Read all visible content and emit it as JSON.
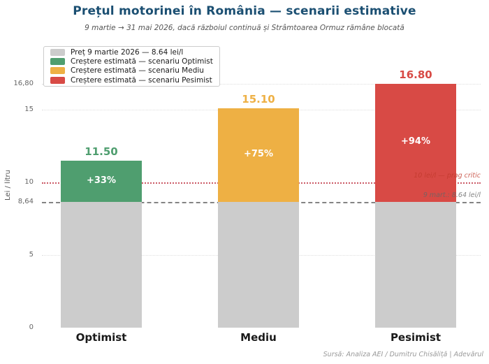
{
  "chart_data": {
    "type": "bar",
    "stacked": true,
    "title": "Prețul motorinei în România — scenarii estimative",
    "subtitle": "9 martie → 31 mai 2026, dacă războiul continuă și Strâmtoarea Ormuz rămâne blocată",
    "ylabel": "Lei / litru",
    "ylim": [
      0,
      18.2
    ],
    "grid": "horizontal-dotted",
    "legend_position": "upper-left",
    "categories": [
      "Optimist",
      "Mediu",
      "Pesimist"
    ],
    "base": {
      "label": "Preț 9 martie 2026 — 8.64 lei/l",
      "value": 8.64,
      "color": "#cccccc"
    },
    "bars": [
      {
        "category": "Optimist",
        "total_value": 11.5,
        "total_label": "11.50",
        "increase_label": "+33%",
        "color": "#4f9e6f"
      },
      {
        "category": "Mediu",
        "total_value": 15.1,
        "total_label": "15.10",
        "increase_label": "+75%",
        "color": "#eeb044"
      },
      {
        "category": "Pesimist",
        "total_value": 16.8,
        "total_label": "16.80",
        "increase_label": "+94%",
        "color": "#d84a45"
      }
    ],
    "yticks": [
      {
        "value": 0,
        "label": "0"
      },
      {
        "value": 5,
        "label": "5"
      },
      {
        "value": 8.64,
        "label": "8,64"
      },
      {
        "value": 10,
        "label": "10"
      },
      {
        "value": 15,
        "label": "15"
      },
      {
        "value": 16.8,
        "label": "16,80"
      }
    ],
    "gridline_values": [
      5,
      15,
      16.8
    ],
    "reference_lines": [
      {
        "value": 10,
        "label": "10 lei/l — prag critic",
        "style": "dotted",
        "line_color": "#cb5a66",
        "text_color": "#c0392b"
      },
      {
        "value": 8.64,
        "label": "9 mart.: 8.64 lei/l",
        "style": "dashed",
        "line_color": "#848484",
        "text_color": "#666666"
      }
    ],
    "legend": [
      {
        "label": "Preț 9 martie 2026 — 8.64 lei/l",
        "color": "#cccccc"
      },
      {
        "label": "Creștere estimată — scenariu Optimist",
        "color": "#4f9e6f"
      },
      {
        "label": "Creștere estimată — scenariu Mediu",
        "color": "#eeb044"
      },
      {
        "label": "Creștere estimată — scenariu Pesimist",
        "color": "#d84a45"
      }
    ],
    "source": "Sursă: Analiza AEI / Dumitru Chisăliță | Adevărul"
  }
}
